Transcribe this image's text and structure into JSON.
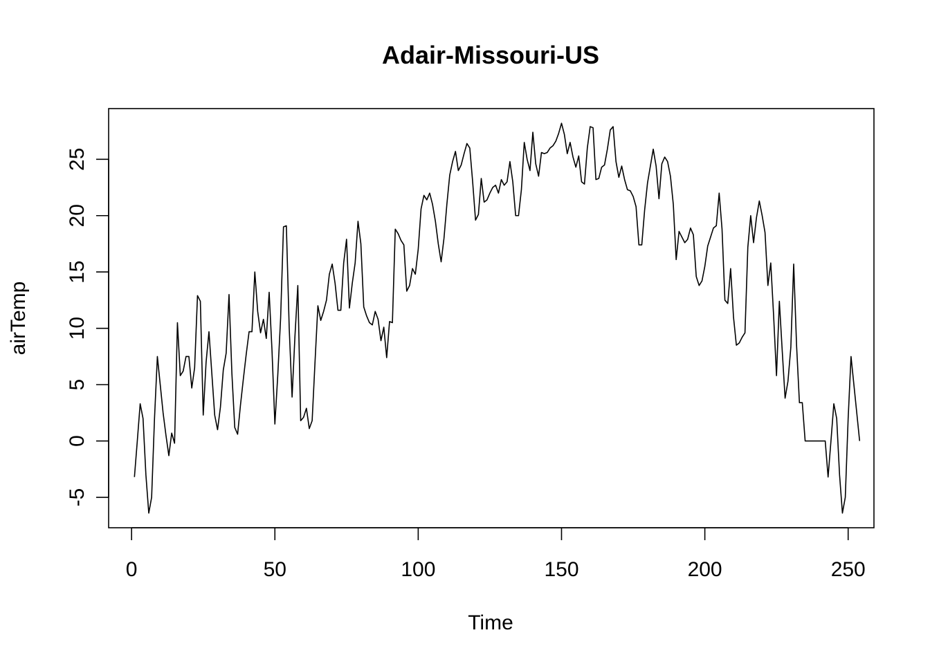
{
  "chart_data": {
    "type": "line",
    "title": "Adair-Missouri-US",
    "xlabel": "Time",
    "ylabel": "airTemp",
    "xlim": [
      -8,
      259
    ],
    "ylim": [
      -7.7,
      29.5
    ],
    "x_ticks": [
      0,
      50,
      100,
      150,
      200,
      250
    ],
    "y_ticks": [
      -5,
      0,
      5,
      10,
      15,
      20,
      25
    ],
    "grid": false,
    "legend": "none",
    "line_color": "#000000",
    "series": [
      {
        "x_start": 1,
        "values": [
          -3.2,
          0.0,
          3.3,
          2.0,
          -3.0,
          -6.4,
          -5.0,
          2.0,
          7.5,
          5.0,
          2.5,
          0.5,
          -1.3,
          0.7,
          -0.2,
          10.5,
          5.8,
          6.2,
          7.5,
          7.5,
          4.7,
          6.5,
          12.9,
          12.4,
          2.3,
          7.0,
          9.7,
          6.0,
          2.3,
          1.0,
          3.0,
          6.3,
          7.8,
          13.0,
          6.0,
          1.2,
          0.6,
          3.2,
          5.5,
          7.7,
          9.7,
          9.7,
          15.0,
          11.5,
          9.6,
          10.8,
          9.1,
          13.2,
          8.0,
          1.5,
          5.8,
          10.9,
          19.0,
          19.1,
          10.0,
          3.9,
          9.3,
          13.8,
          1.8,
          2.1,
          2.9,
          1.1,
          1.8,
          7.0,
          12.0,
          10.7,
          11.5,
          12.5,
          14.8,
          15.7,
          14.0,
          11.6,
          11.6,
          15.8,
          17.9,
          11.8,
          14.0,
          15.8,
          19.5,
          17.5,
          11.9,
          11.1,
          10.5,
          10.3,
          11.5,
          10.8,
          8.9,
          10.1,
          7.4,
          10.6,
          10.5,
          18.8,
          18.4,
          17.8,
          17.4,
          13.3,
          13.8,
          15.3,
          14.8,
          17.0,
          20.6,
          21.8,
          21.4,
          22.0,
          21.0,
          19.5,
          17.5,
          15.9,
          18.0,
          21.0,
          23.6,
          24.8,
          25.7,
          24.0,
          24.5,
          25.5,
          26.4,
          26.0,
          23.0,
          19.6,
          20.1,
          23.3,
          21.2,
          21.4,
          22.0,
          22.5,
          22.7,
          22.0,
          23.2,
          22.7,
          23.0,
          24.8,
          23.0,
          20.0,
          20.0,
          22.3,
          26.5,
          25.0,
          24.0,
          27.4,
          24.6,
          23.5,
          25.6,
          25.5,
          25.6,
          26.0,
          26.2,
          26.6,
          27.3,
          28.2,
          27.2,
          25.5,
          26.5,
          25.2,
          24.3,
          25.3,
          23.0,
          22.8,
          26.0,
          27.9,
          27.8,
          23.2,
          23.3,
          24.3,
          24.5,
          25.9,
          27.6,
          27.9,
          24.8,
          23.4,
          24.4,
          23.2,
          22.3,
          22.2,
          21.7,
          20.8,
          17.4,
          17.4,
          20.5,
          22.9,
          24.4,
          25.9,
          24.4,
          21.5,
          24.6,
          25.2,
          24.8,
          23.5,
          21.0,
          16.1,
          18.6,
          18.1,
          17.6,
          17.9,
          18.9,
          18.3,
          14.6,
          13.8,
          14.2,
          15.5,
          17.3,
          18.1,
          18.9,
          19.1,
          22.0,
          18.8,
          12.5,
          12.2,
          15.3,
          11.0,
          8.5,
          8.7,
          9.2,
          9.6,
          17.2,
          20.0,
          17.6,
          19.8,
          21.3,
          20.0,
          18.5,
          13.8,
          15.8,
          11.1,
          5.8,
          12.4,
          8.0,
          3.8,
          5.3,
          8.3,
          15.7,
          8.5,
          3.4,
          3.4,
          0.0,
          0.0,
          0.0,
          0.0,
          0.0,
          0.0,
          0.0,
          0.0,
          -3.2,
          0.0,
          3.3,
          2.0,
          -3.0,
          -6.4,
          -5.0,
          2.0,
          7.5,
          5.0,
          2.5,
          0.0
        ]
      }
    ]
  }
}
